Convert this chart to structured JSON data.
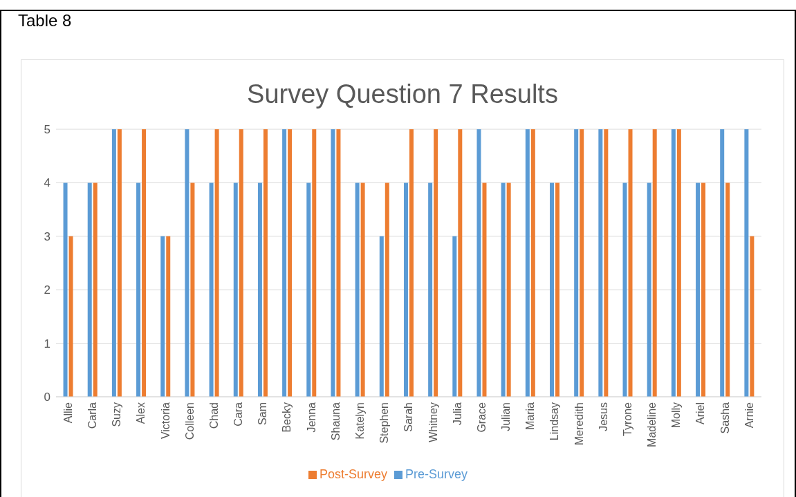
{
  "chart_data": {
    "type": "bar",
    "title": "Survey Question 7 Results",
    "annotations": [
      "Table 8"
    ],
    "categories": [
      "Allie",
      "Carla",
      "Suzy",
      "Alex",
      "Victoria",
      "Colleen",
      "Chad",
      "Cara",
      "Sam",
      "Becky",
      "Jenna",
      "Shauna",
      "Katelyn",
      "Stephen",
      "Sarah",
      "Whitney",
      "Julia",
      "Grace",
      "Julian",
      "Maria",
      "Lindsay",
      "Meredith",
      "Jesus",
      "Tyrone",
      "Madeline",
      "Molly",
      "Ariel",
      "Sasha",
      "Arnie"
    ],
    "series": [
      {
        "name": "Pre-Survey",
        "color": "#5b9bd5",
        "values": [
          4,
          4,
          5,
          4,
          3,
          5,
          4,
          4,
          4,
          5,
          4,
          5,
          4,
          3,
          4,
          4,
          3,
          5,
          4,
          5,
          4,
          5,
          5,
          4,
          4,
          5,
          4,
          5,
          5
        ]
      },
      {
        "name": "Post-Survey",
        "color": "#ed7d31",
        "values": [
          3,
          4,
          5,
          5,
          3,
          4,
          5,
          5,
          5,
          5,
          5,
          5,
          4,
          4,
          5,
          5,
          5,
          4,
          4,
          5,
          4,
          5,
          5,
          5,
          5,
          5,
          4,
          4,
          3
        ]
      }
    ],
    "ylim": [
      0,
      5
    ],
    "yticks": [
      0,
      1,
      2,
      3,
      4,
      5
    ],
    "grid": "y",
    "legend": "bottom"
  }
}
